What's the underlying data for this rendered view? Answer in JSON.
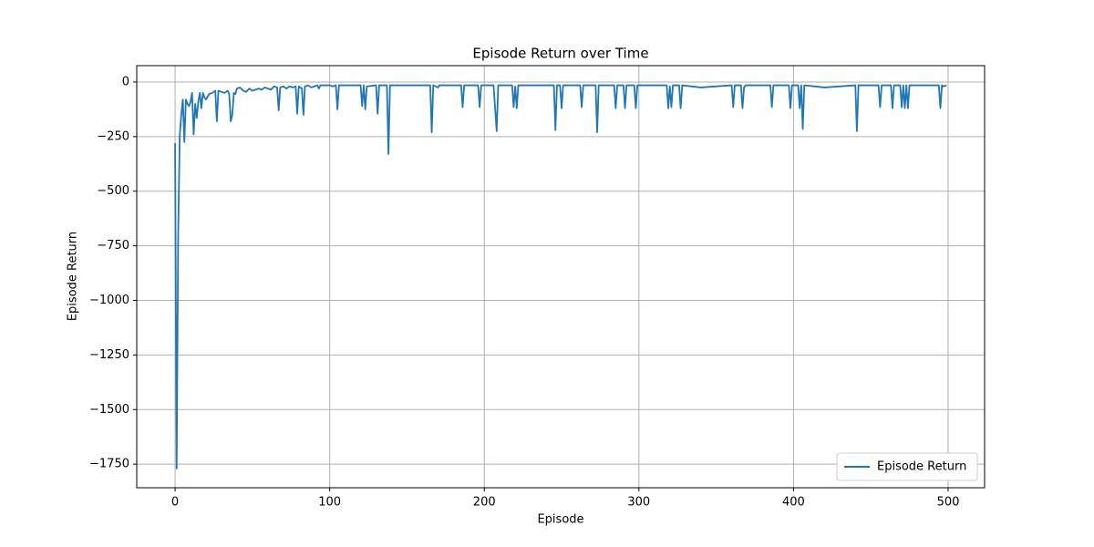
{
  "chart_data": {
    "type": "line",
    "title": "Episode Return over Time",
    "x_label": "Episode",
    "y_label": "Episode Return",
    "grid": true,
    "legend_position": "lower right",
    "xlim": [
      -24.8,
      523.6
    ],
    "ylim": [
      -1858,
      75
    ],
    "xticks": [
      0,
      100,
      200,
      300,
      400,
      500
    ],
    "yticks": [
      {
        "value": -1750,
        "label": "−1750"
      },
      {
        "value": -1500,
        "label": "−1500"
      },
      {
        "value": -1250,
        "label": "−1250"
      },
      {
        "value": -1000,
        "label": "−1000"
      },
      {
        "value": -750,
        "label": "−750"
      },
      {
        "value": -500,
        "label": "−500"
      },
      {
        "value": -250,
        "label": "−250"
      },
      0
    ],
    "series": [
      {
        "name": "Episode Return",
        "color": "#1f77b4",
        "x": [
          0,
          1,
          2,
          3,
          4,
          5,
          6,
          7,
          8,
          9,
          10,
          11,
          12,
          13,
          14,
          15,
          16,
          17,
          18,
          19,
          20,
          22,
          24,
          26,
          27,
          28,
          30,
          32,
          34,
          35,
          36,
          37,
          38,
          39,
          40,
          42,
          44,
          46,
          48,
          50,
          52,
          54,
          56,
          58,
          60,
          62,
          64,
          66,
          67,
          68,
          70,
          72,
          74,
          76,
          78,
          79,
          80,
          82,
          83,
          84,
          86,
          88,
          90,
          92,
          93,
          94,
          100,
          102,
          104,
          105,
          106,
          110,
          115,
          120,
          121,
          122,
          123,
          124,
          130,
          131,
          132,
          137,
          138,
          139,
          150,
          165,
          166,
          167,
          170,
          171,
          185,
          186,
          187,
          196,
          197,
          198,
          206,
          207,
          208,
          209,
          218,
          219,
          220,
          221,
          222,
          245,
          246,
          247,
          249,
          250,
          251,
          262,
          263,
          264,
          272,
          273,
          274,
          284,
          285,
          286,
          290,
          291,
          292,
          297,
          298,
          299,
          318,
          319,
          320,
          321,
          322,
          326,
          327,
          328,
          340,
          360,
          361,
          362,
          366,
          367,
          368,
          369,
          385,
          386,
          387,
          397,
          398,
          399,
          403,
          404,
          405,
          406,
          407,
          420,
          440,
          441,
          442,
          455,
          456,
          457,
          463,
          464,
          465,
          469,
          470,
          471,
          472,
          473,
          474,
          475,
          494,
          495,
          496,
          497,
          499
        ],
        "values": [
          -280,
          -1770,
          -700,
          -250,
          -150,
          -80,
          -275,
          -80,
          -100,
          -110,
          -90,
          -50,
          -240,
          -100,
          -165,
          -90,
          -50,
          -120,
          -50,
          -70,
          -80,
          -55,
          -50,
          -40,
          -180,
          -40,
          -45,
          -50,
          -40,
          -55,
          -180,
          -150,
          -50,
          -55,
          -30,
          -25,
          -40,
          -45,
          -30,
          -40,
          -35,
          -30,
          -35,
          -25,
          -30,
          -35,
          -20,
          -25,
          -130,
          -25,
          -20,
          -30,
          -20,
          -25,
          -20,
          -145,
          -20,
          -30,
          -150,
          -20,
          -15,
          -25,
          -20,
          -15,
          -30,
          -15,
          -15,
          -20,
          -15,
          -125,
          -15,
          -15,
          -15,
          -15,
          -110,
          -15,
          -125,
          -20,
          -15,
          -145,
          -15,
          -15,
          -330,
          -15,
          -15,
          -15,
          -230,
          -15,
          -25,
          -15,
          -15,
          -115,
          -15,
          -15,
          -115,
          -15,
          -15,
          -120,
          -225,
          -15,
          -15,
          -115,
          -20,
          -120,
          -15,
          -15,
          -220,
          -15,
          -15,
          -120,
          -15,
          -15,
          -115,
          -15,
          -15,
          -230,
          -15,
          -15,
          -120,
          -15,
          -15,
          -120,
          -15,
          -15,
          -120,
          -15,
          -15,
          -120,
          -20,
          -115,
          -15,
          -15,
          -120,
          -15,
          -25,
          -15,
          -115,
          -15,
          -15,
          -120,
          -25,
          -15,
          -15,
          -115,
          -15,
          -15,
          -120,
          -15,
          -15,
          -120,
          -15,
          -215,
          -15,
          -25,
          -15,
          -225,
          -15,
          -15,
          -115,
          -15,
          -15,
          -120,
          -15,
          -15,
          -115,
          -15,
          -120,
          -15,
          -120,
          -15,
          -15,
          -120,
          -15,
          -20,
          -15
        ]
      }
    ]
  }
}
